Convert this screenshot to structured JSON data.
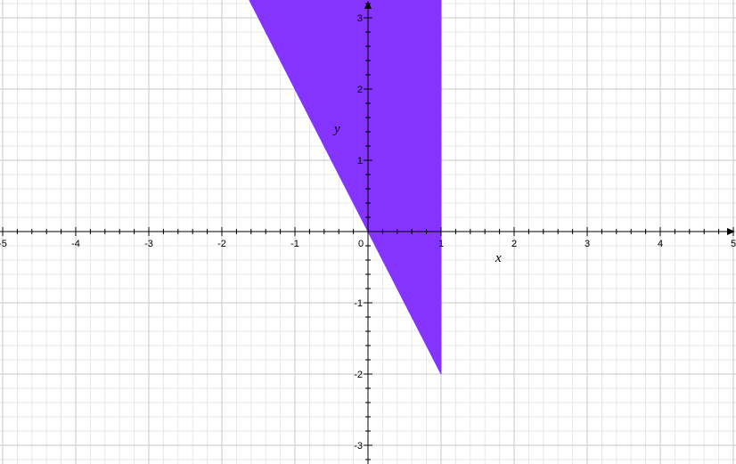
{
  "chart_data": {
    "type": "area",
    "title": "",
    "xlabel": "x",
    "ylabel": "y",
    "xlim": [
      -5,
      5
    ],
    "ylim": [
      -3.25,
      3.25
    ],
    "grid": true,
    "minor_grid_per_unit": 5,
    "x_ticks": [
      -5,
      -4,
      -3,
      -2,
      -1,
      0,
      1,
      2,
      3,
      4,
      5
    ],
    "y_ticks": [
      -3,
      -2,
      -1,
      1,
      2,
      3
    ],
    "x_tick_labels": [
      "-5",
      "-4",
      "-3",
      "-2",
      "-1",
      "0",
      "1",
      "2",
      "3",
      "4",
      "5"
    ],
    "y_tick_labels": [
      "-3",
      "-2",
      "-1",
      "1",
      "2",
      "3"
    ],
    "region": {
      "description": "y >= -2x and x <= 1",
      "boundary_line": {
        "slope": -2,
        "intercept": 0
      },
      "x_max": 1,
      "vertices": [
        [
          -1.625,
          3.25
        ],
        [
          1,
          3.25
        ],
        [
          1,
          -2
        ],
        [
          0,
          0
        ]
      ],
      "fill_color": "#8533ff"
    },
    "colors": {
      "grid_major": "#c8c8c8",
      "grid_minor": "#e8e8e8",
      "axis": "#000000"
    }
  }
}
